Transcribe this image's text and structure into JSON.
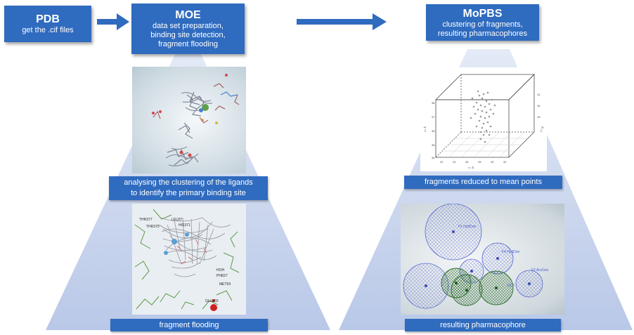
{
  "steps": {
    "pdb": {
      "title": "PDB",
      "subtitle": "get the .cif files"
    },
    "moe": {
      "title": "MOE",
      "lines": [
        "data set preparation,",
        "binding site detection,",
        "fragment flooding"
      ]
    },
    "mopbs": {
      "title": "MoPBS",
      "lines": [
        "clustering of fragments,",
        "resulting pharmacophores"
      ]
    }
  },
  "captions": {
    "ligand_clustering": [
      "analysing the clustering of the ligands",
      "to identify the primary binding site"
    ],
    "fragment_flooding": "fragment flooding",
    "mean_points": "fragments reduced to mean points",
    "pharmacophore": "resulting pharmacophore"
  },
  "colors": {
    "header_blue": "#2f6bbf",
    "cone": "#d9e2f3",
    "arrow": "#2f6bbf"
  }
}
